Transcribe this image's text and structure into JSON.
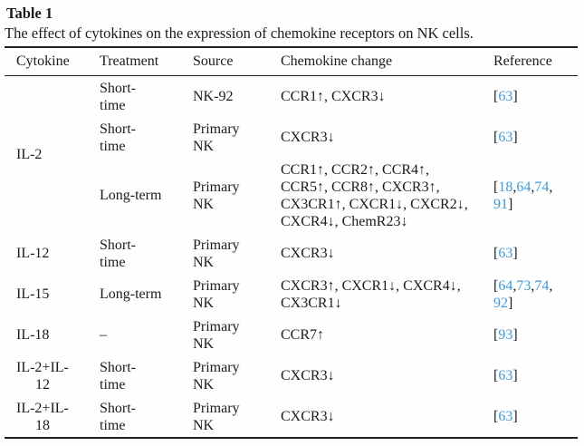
{
  "page": {
    "label": "Table 1",
    "caption": "The effect of cytokines on the expression of chemokine receptors on NK cells."
  },
  "colors": {
    "citation_blue": "#3f9ad6",
    "text": "#1b1b1b",
    "rule": "#1f1f1f"
  },
  "table": {
    "columns": [
      "Cytokine",
      "Treatment",
      "Source",
      "Chemokine change",
      "Reference"
    ],
    "rows": [
      {
        "cytokine": {
          "text": "IL-2",
          "rowspan": 3,
          "center": false
        },
        "treatment": "Short-\ntime",
        "source": "NK-92",
        "chemokine": "CCR1↑, CXCR3↓",
        "reference": "[63]"
      },
      {
        "treatment": "Short-\ntime",
        "source": "Primary\nNK",
        "chemokine": "CXCR3↓",
        "reference": "[63]"
      },
      {
        "treatment": "Long-term",
        "source": "Primary\nNK",
        "chemokine": "CCR1↑, CCR2↑, CCR4↑,\nCCR5↑, CCR8↑, CXCR3↑,\nCX3CR1↑, CXCR1↓, CXCR2↓,\nCXCR4↓, ChemR23↓",
        "reference": "[18,64,74,\n91]"
      },
      {
        "cytokine": {
          "text": "IL-12",
          "center": false
        },
        "treatment": "Short-\ntime",
        "source": "Primary\nNK",
        "chemokine": "CXCR3↓",
        "reference": "[63]"
      },
      {
        "cytokine": {
          "text": "IL-15",
          "center": false
        },
        "treatment": "Long-term",
        "source": "Primary\nNK",
        "chemokine": "CXCR3↑, CXCR1↓, CXCR4↓,\nCX3CR1↓",
        "reference": "[64,73,74,\n92]"
      },
      {
        "cytokine": {
          "text": "IL-18",
          "center": false
        },
        "treatment": "–",
        "source": "Primary\nNK",
        "chemokine": "CCR7↑",
        "reference": "[93]"
      },
      {
        "cytokine": {
          "text": "IL-2+IL-\n12",
          "center": true
        },
        "treatment": "Short-\ntime",
        "source": "Primary\nNK",
        "chemokine": "CXCR3↓",
        "reference": "[63]"
      },
      {
        "cytokine": {
          "text": "IL-2+IL-\n18",
          "center": true
        },
        "treatment": "Short-\ntime",
        "source": "Primary\nNK",
        "chemokine": "CXCR3↓",
        "reference": "[63]"
      }
    ]
  }
}
